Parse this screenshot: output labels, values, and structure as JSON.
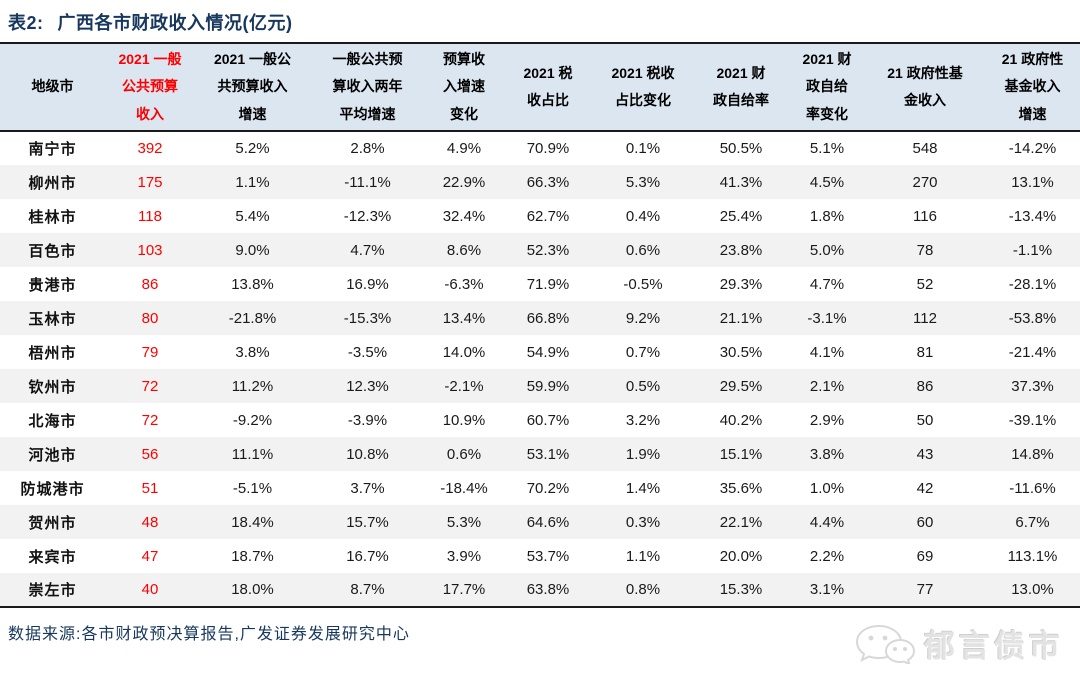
{
  "title": {
    "label": "表2:",
    "text": "广西各市财政收入情况(亿元)"
  },
  "table": {
    "columns": [
      {
        "label": "地级市",
        "red": false
      },
      {
        "label": "2021 一般\n公共预算\n收入",
        "red": true
      },
      {
        "label": "2021 一般公\n共预算收入\n增速",
        "red": false
      },
      {
        "label": "一般公共预\n算收入两年\n平均增速",
        "red": false
      },
      {
        "label": "预算收\n入增速\n变化",
        "red": false
      },
      {
        "label": "2021 税\n收占比",
        "red": false
      },
      {
        "label": "2021 税收\n占比变化",
        "red": false
      },
      {
        "label": "2021 财\n政自给率",
        "red": false
      },
      {
        "label": "2021 财\n政自给\n率变化",
        "red": false
      },
      {
        "label": "21 政府性基\n金收入",
        "red": false
      },
      {
        "label": "21 政府性\n基金收入\n增速",
        "red": false
      }
    ],
    "rows": [
      {
        "city": "南宁市",
        "values": [
          "392",
          "5.2%",
          "2.8%",
          "4.9%",
          "70.9%",
          "0.1%",
          "50.5%",
          "5.1%",
          "548",
          "-14.2%"
        ]
      },
      {
        "city": "柳州市",
        "values": [
          "175",
          "1.1%",
          "-11.1%",
          "22.9%",
          "66.3%",
          "5.3%",
          "41.3%",
          "4.5%",
          "270",
          "13.1%"
        ]
      },
      {
        "city": "桂林市",
        "values": [
          "118",
          "5.4%",
          "-12.3%",
          "32.4%",
          "62.7%",
          "0.4%",
          "25.4%",
          "1.8%",
          "116",
          "-13.4%"
        ]
      },
      {
        "city": "百色市",
        "values": [
          "103",
          "9.0%",
          "4.7%",
          "8.6%",
          "52.3%",
          "0.6%",
          "23.8%",
          "5.0%",
          "78",
          "-1.1%"
        ]
      },
      {
        "city": "贵港市",
        "values": [
          "86",
          "13.8%",
          "16.9%",
          "-6.3%",
          "71.9%",
          "-0.5%",
          "29.3%",
          "4.7%",
          "52",
          "-28.1%"
        ]
      },
      {
        "city": "玉林市",
        "values": [
          "80",
          "-21.8%",
          "-15.3%",
          "13.4%",
          "66.8%",
          "9.2%",
          "21.1%",
          "-3.1%",
          "112",
          "-53.8%"
        ]
      },
      {
        "city": "梧州市",
        "values": [
          "79",
          "3.8%",
          "-3.5%",
          "14.0%",
          "54.9%",
          "0.7%",
          "30.5%",
          "4.1%",
          "81",
          "-21.4%"
        ]
      },
      {
        "city": "钦州市",
        "values": [
          "72",
          "11.2%",
          "12.3%",
          "-2.1%",
          "59.9%",
          "0.5%",
          "29.5%",
          "2.1%",
          "86",
          "37.3%"
        ]
      },
      {
        "city": "北海市",
        "values": [
          "72",
          "-9.2%",
          "-3.9%",
          "10.9%",
          "60.7%",
          "3.2%",
          "40.2%",
          "2.9%",
          "50",
          "-39.1%"
        ]
      },
      {
        "city": "河池市",
        "values": [
          "56",
          "11.1%",
          "10.8%",
          "0.6%",
          "53.1%",
          "1.9%",
          "15.1%",
          "3.8%",
          "43",
          "14.8%"
        ]
      },
      {
        "city": "防城港市",
        "values": [
          "51",
          "-5.1%",
          "3.7%",
          "-18.4%",
          "70.2%",
          "1.4%",
          "35.6%",
          "1.0%",
          "42",
          "-11.6%"
        ]
      },
      {
        "city": "贺州市",
        "values": [
          "48",
          "18.4%",
          "15.7%",
          "5.3%",
          "64.6%",
          "0.3%",
          "22.1%",
          "4.4%",
          "60",
          "6.7%"
        ]
      },
      {
        "city": "来宾市",
        "values": [
          "47",
          "18.7%",
          "16.7%",
          "3.9%",
          "53.7%",
          "1.1%",
          "20.0%",
          "2.2%",
          "69",
          "113.1%"
        ]
      },
      {
        "city": "崇左市",
        "values": [
          "40",
          "18.0%",
          "8.7%",
          "17.7%",
          "63.8%",
          "0.8%",
          "15.3%",
          "3.1%",
          "77",
          "13.0%"
        ]
      }
    ]
  },
  "footer": {
    "source": "数据来源:各市财政预决算报告,广发证券发展研究中心"
  },
  "watermark": {
    "icon": "wechat-icon",
    "text": "郁言债市"
  },
  "colors": {
    "title_navy": "#17375E",
    "header_bg": "#DCE6F1",
    "accent_red": "#FF0000",
    "stripe_gray": "#F2F2F2",
    "border_dark": "#1a1a1a",
    "watermark_gray": "#e3e3e3"
  }
}
